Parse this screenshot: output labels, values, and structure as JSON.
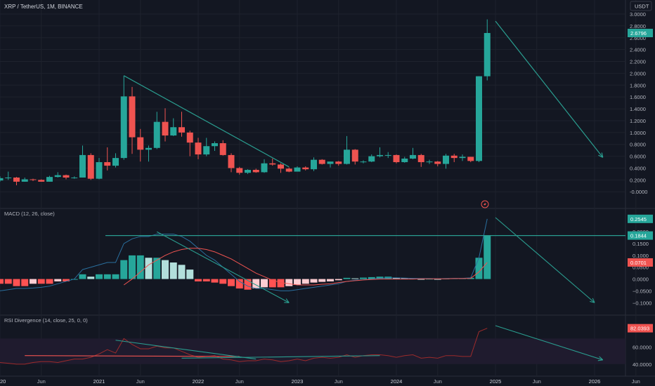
{
  "chart_data": [
    {
      "type": "candlestick",
      "title": "XRP / TetherUS, 1M, BINANCE",
      "currency": "USDT",
      "last_price_label": "2.6796",
      "ylim": [
        -0.08,
        3.0
      ],
      "y_ticks": [
        "3.0000",
        "2.8000",
        "2.6000",
        "2.4000",
        "2.2000",
        "2.0000",
        "1.8000",
        "1.6000",
        "1.4000",
        "1.2000",
        "1.0000",
        "0.8000",
        "0.6000",
        "0.4000",
        "0.2000",
        "-0.0000"
      ],
      "y_tick_values": [
        3.0,
        2.8,
        2.6,
        2.4,
        2.2,
        2.0,
        1.8,
        1.6,
        1.4,
        1.2,
        1.0,
        0.8,
        0.6,
        0.4,
        0.2,
        0.0
      ],
      "candles": [
        {
          "x": "2020-01",
          "o": 0.19,
          "h": 0.26,
          "l": 0.17,
          "c": 0.23
        },
        {
          "x": "2020-02",
          "o": 0.23,
          "h": 0.34,
          "l": 0.2,
          "c": 0.24
        },
        {
          "x": "2020-03",
          "o": 0.24,
          "h": 0.25,
          "l": 0.11,
          "c": 0.17
        },
        {
          "x": "2020-04",
          "o": 0.17,
          "h": 0.24,
          "l": 0.17,
          "c": 0.21
        },
        {
          "x": "2020-05",
          "o": 0.21,
          "h": 0.22,
          "l": 0.18,
          "c": 0.2
        },
        {
          "x": "2020-06",
          "o": 0.2,
          "h": 0.21,
          "l": 0.17,
          "c": 0.17
        },
        {
          "x": "2020-07",
          "o": 0.17,
          "h": 0.27,
          "l": 0.17,
          "c": 0.25
        },
        {
          "x": "2020-08",
          "o": 0.25,
          "h": 0.33,
          "l": 0.24,
          "c": 0.28
        },
        {
          "x": "2020-09",
          "o": 0.28,
          "h": 0.29,
          "l": 0.21,
          "c": 0.24
        },
        {
          "x": "2020-10",
          "o": 0.24,
          "h": 0.26,
          "l": 0.22,
          "c": 0.24
        },
        {
          "x": "2020-11",
          "o": 0.24,
          "h": 0.78,
          "l": 0.24,
          "c": 0.62
        },
        {
          "x": "2020-12",
          "o": 0.62,
          "h": 0.65,
          "l": 0.2,
          "c": 0.22
        },
        {
          "x": "2021-01",
          "o": 0.22,
          "h": 0.57,
          "l": 0.21,
          "c": 0.5
        },
        {
          "x": "2021-02",
          "o": 0.5,
          "h": 0.75,
          "l": 0.36,
          "c": 0.44
        },
        {
          "x": "2021-03",
          "o": 0.44,
          "h": 0.65,
          "l": 0.41,
          "c": 0.57
        },
        {
          "x": "2021-04",
          "o": 0.57,
          "h": 1.96,
          "l": 0.54,
          "c": 1.61
        },
        {
          "x": "2021-05",
          "o": 1.61,
          "h": 1.77,
          "l": 0.64,
          "c": 0.92
        },
        {
          "x": "2021-06",
          "o": 0.92,
          "h": 1.06,
          "l": 0.51,
          "c": 0.71
        },
        {
          "x": "2021-07",
          "o": 0.71,
          "h": 0.78,
          "l": 0.51,
          "c": 0.74
        },
        {
          "x": "2021-08",
          "o": 0.74,
          "h": 1.35,
          "l": 0.72,
          "c": 1.18
        },
        {
          "x": "2021-09",
          "o": 1.18,
          "h": 1.41,
          "l": 0.85,
          "c": 0.95
        },
        {
          "x": "2021-10",
          "o": 0.95,
          "h": 1.24,
          "l": 0.94,
          "c": 1.09
        },
        {
          "x": "2021-11",
          "o": 1.09,
          "h": 1.35,
          "l": 0.93,
          "c": 1.0
        },
        {
          "x": "2021-12",
          "o": 1.0,
          "h": 1.03,
          "l": 0.6,
          "c": 0.83
        },
        {
          "x": "2022-01",
          "o": 0.83,
          "h": 0.91,
          "l": 0.55,
          "c": 0.63
        },
        {
          "x": "2022-02",
          "o": 0.63,
          "h": 0.91,
          "l": 0.6,
          "c": 0.77
        },
        {
          "x": "2022-03",
          "o": 0.77,
          "h": 0.85,
          "l": 0.69,
          "c": 0.82
        },
        {
          "x": "2022-04",
          "o": 0.82,
          "h": 0.87,
          "l": 0.61,
          "c": 0.62
        },
        {
          "x": "2022-05",
          "o": 0.62,
          "h": 0.65,
          "l": 0.33,
          "c": 0.4
        },
        {
          "x": "2022-06",
          "o": 0.4,
          "h": 0.42,
          "l": 0.29,
          "c": 0.32
        },
        {
          "x": "2022-07",
          "o": 0.32,
          "h": 0.38,
          "l": 0.3,
          "c": 0.37
        },
        {
          "x": "2022-08",
          "o": 0.37,
          "h": 0.39,
          "l": 0.32,
          "c": 0.33
        },
        {
          "x": "2022-09",
          "o": 0.33,
          "h": 0.55,
          "l": 0.32,
          "c": 0.48
        },
        {
          "x": "2022-10",
          "o": 0.48,
          "h": 0.56,
          "l": 0.44,
          "c": 0.46
        },
        {
          "x": "2022-11",
          "o": 0.46,
          "h": 0.48,
          "l": 0.32,
          "c": 0.39
        },
        {
          "x": "2022-12",
          "o": 0.39,
          "h": 0.41,
          "l": 0.33,
          "c": 0.34
        },
        {
          "x": "2023-01",
          "o": 0.34,
          "h": 0.43,
          "l": 0.34,
          "c": 0.41
        },
        {
          "x": "2023-02",
          "o": 0.41,
          "h": 0.43,
          "l": 0.36,
          "c": 0.38
        },
        {
          "x": "2023-03",
          "o": 0.38,
          "h": 0.58,
          "l": 0.35,
          "c": 0.54
        },
        {
          "x": "2023-04",
          "o": 0.54,
          "h": 0.55,
          "l": 0.46,
          "c": 0.47
        },
        {
          "x": "2023-05",
          "o": 0.47,
          "h": 0.51,
          "l": 0.41,
          "c": 0.51
        },
        {
          "x": "2023-06",
          "o": 0.51,
          "h": 0.52,
          "l": 0.44,
          "c": 0.47
        },
        {
          "x": "2023-07",
          "o": 0.47,
          "h": 0.94,
          "l": 0.46,
          "c": 0.71
        },
        {
          "x": "2023-08",
          "o": 0.71,
          "h": 0.72,
          "l": 0.46,
          "c": 0.51
        },
        {
          "x": "2023-09",
          "o": 0.51,
          "h": 0.53,
          "l": 0.48,
          "c": 0.51
        },
        {
          "x": "2023-10",
          "o": 0.51,
          "h": 0.63,
          "l": 0.5,
          "c": 0.6
        },
        {
          "x": "2023-11",
          "o": 0.6,
          "h": 0.75,
          "l": 0.58,
          "c": 0.62
        },
        {
          "x": "2023-12",
          "o": 0.62,
          "h": 0.67,
          "l": 0.57,
          "c": 0.62
        },
        {
          "x": "2024-01",
          "o": 0.62,
          "h": 0.63,
          "l": 0.48,
          "c": 0.5
        },
        {
          "x": "2024-02",
          "o": 0.5,
          "h": 0.59,
          "l": 0.49,
          "c": 0.56
        },
        {
          "x": "2024-03",
          "o": 0.56,
          "h": 0.74,
          "l": 0.55,
          "c": 0.62
        },
        {
          "x": "2024-04",
          "o": 0.62,
          "h": 0.64,
          "l": 0.42,
          "c": 0.5
        },
        {
          "x": "2024-05",
          "o": 0.5,
          "h": 0.54,
          "l": 0.47,
          "c": 0.51
        },
        {
          "x": "2024-06",
          "o": 0.51,
          "h": 0.52,
          "l": 0.43,
          "c": 0.47
        },
        {
          "x": "2024-07",
          "o": 0.47,
          "h": 0.64,
          "l": 0.39,
          "c": 0.61
        },
        {
          "x": "2024-08",
          "o": 0.61,
          "h": 0.64,
          "l": 0.5,
          "c": 0.57
        },
        {
          "x": "2024-09",
          "o": 0.57,
          "h": 0.63,
          "l": 0.52,
          "c": 0.59
        },
        {
          "x": "2024-10",
          "o": 0.59,
          "h": 0.59,
          "l": 0.5,
          "c": 0.52
        },
        {
          "x": "2024-11",
          "o": 0.52,
          "h": 1.95,
          "l": 0.5,
          "c": 1.95
        },
        {
          "x": "2024-12",
          "o": 1.95,
          "h": 2.91,
          "l": 1.88,
          "c": 2.68
        }
      ],
      "annotations": [
        {
          "type": "trendline",
          "from": [
            "2021-04",
            1.96
          ],
          "to": [
            "2022-12",
            0.42
          ]
        },
        {
          "type": "arrow",
          "from": [
            "2025-01",
            2.88
          ],
          "to": [
            "2026-02",
            0.58
          ]
        }
      ]
    },
    {
      "type": "macd",
      "title": "MACD (12, 26, close)",
      "value_labels": [
        "0.2545",
        "0.1844",
        "0.0701"
      ],
      "ylim": [
        -0.12,
        0.26
      ],
      "y_ticks": [
        "0.2000",
        "0.1500",
        "0.1000",
        "0.0500",
        "0.0000",
        "−0.0500",
        "−0.1000"
      ],
      "y_tick_values": [
        0.2,
        0.15,
        0.1,
        0.05,
        0.0,
        -0.05,
        -0.1
      ],
      "x_start": "2020-01",
      "histogram": [
        -0.02,
        -0.02,
        -0.03,
        -0.03,
        -0.02,
        -0.02,
        -0.02,
        -0.01,
        -0.01,
        0.0,
        0.02,
        0.01,
        0.02,
        0.02,
        0.02,
        0.08,
        0.1,
        0.1,
        0.09,
        0.09,
        0.08,
        0.07,
        0.06,
        0.04,
        -0.01,
        -0.01,
        -0.015,
        -0.02,
        -0.03,
        -0.04,
        -0.045,
        -0.04,
        -0.035,
        -0.035,
        -0.035,
        -0.03,
        -0.025,
        -0.02,
        -0.015,
        -0.012,
        -0.01,
        -0.005,
        0.005,
        0.003,
        0.006,
        0.008,
        0.01,
        0.01,
        0.006,
        0.004,
        0.003,
        0.0,
        0.001,
        0.0,
        0.002,
        0.003,
        0.003,
        0.005,
        0.09,
        0.184
      ],
      "macd": [
        -0.05,
        -0.045,
        -0.04,
        -0.04,
        -0.038,
        -0.035,
        -0.03,
        -0.02,
        -0.01,
        0.0,
        0.04,
        0.05,
        0.06,
        0.07,
        0.07,
        0.15,
        0.17,
        0.18,
        0.18,
        0.19,
        0.19,
        0.19,
        0.18,
        0.16,
        0.13,
        0.1,
        0.08,
        0.05,
        0.02,
        -0.01,
        -0.03,
        -0.04,
        -0.04,
        -0.045,
        -0.05,
        -0.05,
        -0.045,
        -0.04,
        -0.035,
        -0.03,
        -0.025,
        -0.02,
        -0.01,
        -0.005,
        -0.003,
        0.0,
        0.003,
        0.005,
        0.005,
        0.004,
        0.003,
        0.002,
        0.002,
        0.001,
        0.002,
        0.003,
        0.003,
        0.005,
        0.09,
        0.2545
      ],
      "signal": [
        null,
        null,
        null,
        null,
        null,
        null,
        null,
        null,
        null,
        null,
        null,
        null,
        null,
        null,
        null,
        -0.025,
        0.0,
        0.03,
        0.06,
        0.08,
        0.1,
        0.115,
        0.125,
        0.13,
        0.13,
        0.125,
        0.115,
        0.1,
        0.085,
        0.065,
        0.045,
        0.025,
        0.01,
        -0.005,
        -0.015,
        -0.02,
        -0.025,
        -0.025,
        -0.025,
        -0.022,
        -0.02,
        -0.015,
        -0.01,
        -0.007,
        -0.004,
        -0.002,
        0.0,
        0.0,
        0.0,
        0.0,
        0.0,
        0.001,
        0.001,
        0.001,
        0.001,
        0.002,
        0.002,
        0.003,
        0.03,
        0.0701
      ],
      "annotations": [
        {
          "type": "horizontal_line",
          "y": 0.184
        },
        {
          "type": "arrow",
          "from": [
            "2025-01",
            0.26
          ],
          "to": [
            "2026-01",
            -0.1
          ]
        },
        {
          "type": "trendline",
          "from": [
            "2021-08",
            0.2
          ],
          "to": [
            "2022-12",
            -0.1
          ]
        }
      ]
    },
    {
      "type": "rsi",
      "title": "RSI Divergence (14, close, 25, 0, 0)",
      "value_label": "82.0393",
      "ylim": [
        35,
        85
      ],
      "band": [
        40,
        70
      ],
      "y_ticks": [
        "60.0000",
        "40.0000"
      ],
      "y_tick_values": [
        60,
        40
      ],
      "x_start": "2020-01",
      "rsi": [
        42,
        41,
        40,
        40,
        42,
        43,
        43,
        42,
        44,
        46,
        46,
        48,
        52,
        57,
        53,
        70,
        63,
        58,
        58,
        61,
        59,
        59,
        55,
        51,
        48,
        49,
        50,
        46,
        45,
        43,
        44,
        44,
        46,
        45,
        43,
        44,
        46,
        44,
        47,
        48,
        47,
        48,
        51,
        48,
        50,
        51,
        51,
        50,
        48,
        50,
        51,
        47,
        48,
        47,
        50,
        50,
        49,
        49,
        78,
        82
      ],
      "annotations": [
        {
          "type": "trendline",
          "color": "red",
          "from": [
            "2020-04",
            50
          ],
          "to": [
            "2022-06",
            49
          ]
        },
        {
          "type": "trendline",
          "color": "teal",
          "from": [
            "2021-03",
            68
          ],
          "to": [
            "2022-08",
            46
          ]
        },
        {
          "type": "trendline",
          "color": "teal",
          "from": [
            "2021-11",
            47
          ],
          "to": [
            "2023-11",
            50
          ]
        },
        {
          "type": "arrow",
          "from": [
            "2025-01",
            85
          ],
          "to": [
            "2026-02",
            45
          ]
        }
      ]
    }
  ],
  "x_axis": {
    "start": "2020-01",
    "ticks": [
      {
        "label": "2020",
        "month": "2020-01"
      },
      {
        "label": "Jun",
        "month": "2020-06"
      },
      {
        "label": "2021",
        "month": "2021-01"
      },
      {
        "label": "Jun",
        "month": "2021-06"
      },
      {
        "label": "2022",
        "month": "2022-01"
      },
      {
        "label": "Jun",
        "month": "2022-06"
      },
      {
        "label": "2023",
        "month": "2023-01"
      },
      {
        "label": "Jun",
        "month": "2023-06"
      },
      {
        "label": "2024",
        "month": "2024-01"
      },
      {
        "label": "Jun",
        "month": "2024-06"
      },
      {
        "label": "2025",
        "month": "2025-01"
      },
      {
        "label": "Jun",
        "month": "2025-06"
      },
      {
        "label": "2026",
        "month": "2026-01"
      },
      {
        "label": "Jun",
        "month": "2026-06"
      }
    ]
  },
  "colors": {
    "background": "#131722",
    "up": "#26a69a",
    "down": "#ef5350",
    "grid": "#1e222d",
    "axis_text": "#b2b5be",
    "teal_line": "#2a9d8f",
    "macd_line": "#2a6f9e",
    "signal_line": "#ef5350",
    "hist_up_strong": "#26a69a",
    "hist_up_weak": "#b2dfdb",
    "hist_down_strong": "#ff5252",
    "hist_down_weak": "#ffcdd2",
    "rsi_line": "#9c2b2b",
    "rsi_band": "#1f1b2e"
  },
  "icons": {
    "lightning": "lightning-icon"
  }
}
